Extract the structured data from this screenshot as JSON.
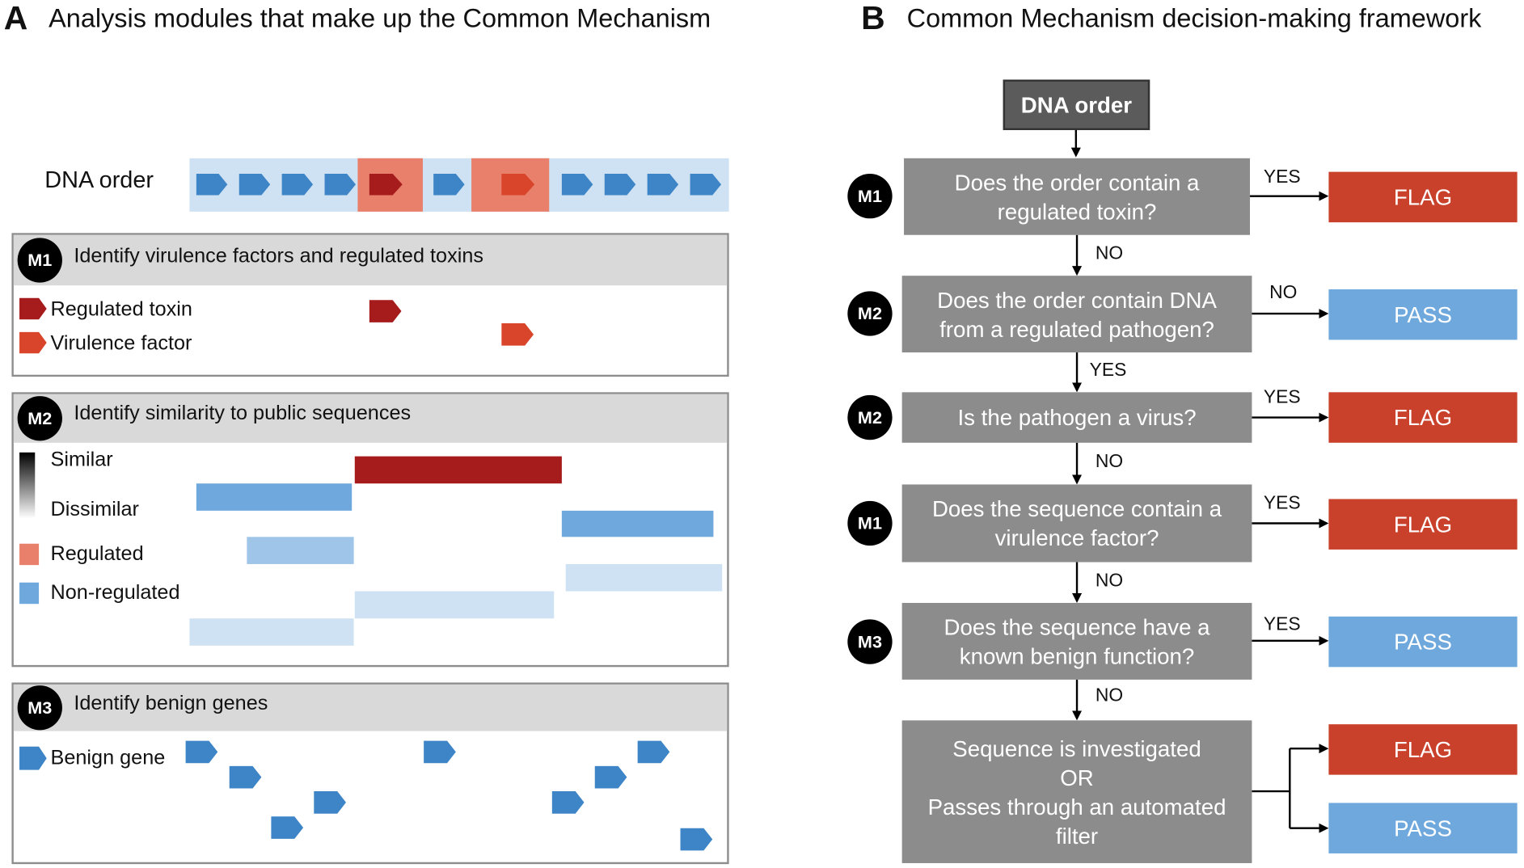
{
  "panel_a": {
    "letter": "A",
    "title": "Analysis modules that make up the Common Mechanism",
    "dna_order_label": "DNA order",
    "modules": {
      "m1": {
        "badge": "M1",
        "title": "Identify virulence factors and regulated toxins",
        "legend": [
          "Regulated toxin",
          "Virulence factor"
        ]
      },
      "m2": {
        "badge": "M2",
        "title": "Identify similarity to public sequences",
        "legend": [
          "Similar",
          "Dissimilar",
          "Regulated",
          "Non-regulated"
        ]
      },
      "m3": {
        "badge": "M3",
        "title": "Identify benign genes",
        "legend": [
          "Benign gene"
        ]
      }
    }
  },
  "panel_b": {
    "letter": "B",
    "title": "Common Mechanism decision-making framework",
    "start": "DNA order",
    "steps": [
      {
        "badge": "M1",
        "question": "Does the order contain a regulated toxin?"
      },
      {
        "badge": "M2",
        "question": "Does the order contain DNA from a regulated pathogen?"
      },
      {
        "badge": "M2",
        "question": "Is the pathogen a virus?"
      },
      {
        "badge": "M1",
        "question": "Does the sequence contain a virulence factor?"
      },
      {
        "badge": "M3",
        "question": "Does the sequence have a known benign function?"
      }
    ],
    "final_step": [
      "Sequence is investigated",
      "OR",
      "Passes through an automated filter"
    ],
    "outcomes": [
      "FLAG",
      "PASS",
      "FLAG",
      "FLAG",
      "PASS",
      "FLAG",
      "PASS"
    ],
    "side_labels": [
      "YES",
      "NO",
      "YES",
      "YES",
      "YES"
    ],
    "down_labels": [
      "NO",
      "YES",
      "NO",
      "NO",
      "NO"
    ]
  },
  "colors": {
    "flag": "#c9412b",
    "pass": "#6fa8dc",
    "decision": "#8c8c8c",
    "gene_blue": "#3d85c6",
    "toxin": "#a61c1c",
    "virulence": "#d9452b",
    "strip": "#cfe2f3"
  }
}
